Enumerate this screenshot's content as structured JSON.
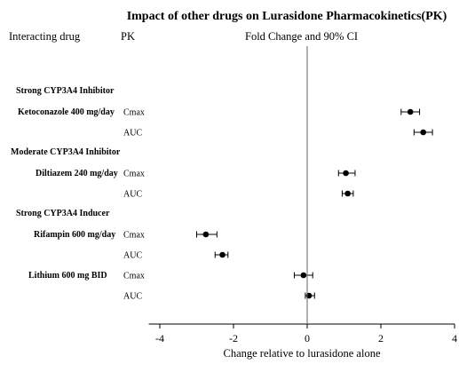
{
  "chart_data": {
    "type": "scatter",
    "title": "Impact of other drugs on Lurasidone Pharmacokinetics(PK)",
    "column_headers": {
      "drug": "Interacting drug",
      "pk": "PK",
      "effect": "Fold Change and 90% CI"
    },
    "xlabel": "Change relative to lurasidone alone",
    "xlim": [
      -4.3,
      4.0
    ],
    "xticks": [
      "-4",
      "-2",
      "0",
      "2",
      "4"
    ],
    "xtick_values": [
      -4,
      -2,
      0,
      2,
      4
    ],
    "reference_line": 0,
    "groups": [
      "Strong CYP3A4 Inhibitor",
      "Moderate CYP3A4 Inhibitor",
      "Strong CYP3A4 Inducer"
    ],
    "drugs": [
      "Ketoconazole 400 mg/day",
      "Diltiazem 240 mg/day",
      "Rifampin 600 mg/day",
      "Lithium 600 mg BID"
    ],
    "rows": [
      {
        "drug": "Ketoconazole 400 mg/day",
        "pk": "Cmax",
        "value": 2.8,
        "lower": 2.55,
        "upper": 3.05
      },
      {
        "drug": "Ketoconazole 400 mg/day",
        "pk": "AUC",
        "value": 3.15,
        "lower": 2.9,
        "upper": 3.4
      },
      {
        "drug": "Diltiazem 240 mg/day",
        "pk": "Cmax",
        "value": 1.05,
        "lower": 0.85,
        "upper": 1.3
      },
      {
        "drug": "Diltiazem 240 mg/day",
        "pk": "AUC",
        "value": 1.1,
        "lower": 0.95,
        "upper": 1.25
      },
      {
        "drug": "Rifampin 600 mg/day",
        "pk": "Cmax",
        "value": -2.75,
        "lower": -3.0,
        "upper": -2.45
      },
      {
        "drug": "Rifampin 600 mg/day",
        "pk": "AUC",
        "value": -2.3,
        "lower": -2.5,
        "upper": -2.15
      },
      {
        "drug": "Lithium 600 mg BID",
        "pk": "Cmax",
        "value": -0.1,
        "lower": -0.35,
        "upper": 0.15
      },
      {
        "drug": "Lithium 600 mg BID",
        "pk": "AUC",
        "value": 0.05,
        "lower": -0.05,
        "upper": 0.2
      }
    ]
  }
}
